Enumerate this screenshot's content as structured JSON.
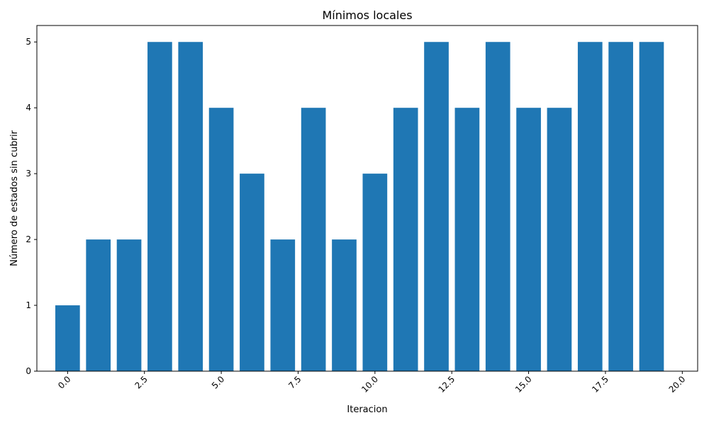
{
  "chart_data": {
    "type": "bar",
    "title": "Mínimos locales",
    "xlabel": "Iteracion",
    "ylabel": "Número de estados sin cubrir",
    "x": [
      0,
      1,
      2,
      3,
      4,
      5,
      6,
      7,
      8,
      9,
      10,
      11,
      12,
      13,
      14,
      15,
      16,
      17,
      18,
      19
    ],
    "values": [
      1,
      2,
      2,
      5,
      5,
      4,
      3,
      2,
      4,
      2,
      3,
      4,
      5,
      4,
      5,
      4,
      4,
      5,
      5,
      5
    ],
    "xlim": [
      -1.0,
      20.5
    ],
    "ylim": [
      0,
      5.25
    ],
    "x_ticks": [
      "0.0",
      "2.5",
      "5.0",
      "7.5",
      "10.0",
      "12.5",
      "15.0",
      "17.5",
      "20.0"
    ],
    "y_ticks": [
      "0",
      "1",
      "2",
      "3",
      "4",
      "5"
    ],
    "x_tick_rotation": 45,
    "bar_width": 0.8,
    "bar_color": "#1f77b4",
    "grid": false,
    "legend": "none"
  }
}
